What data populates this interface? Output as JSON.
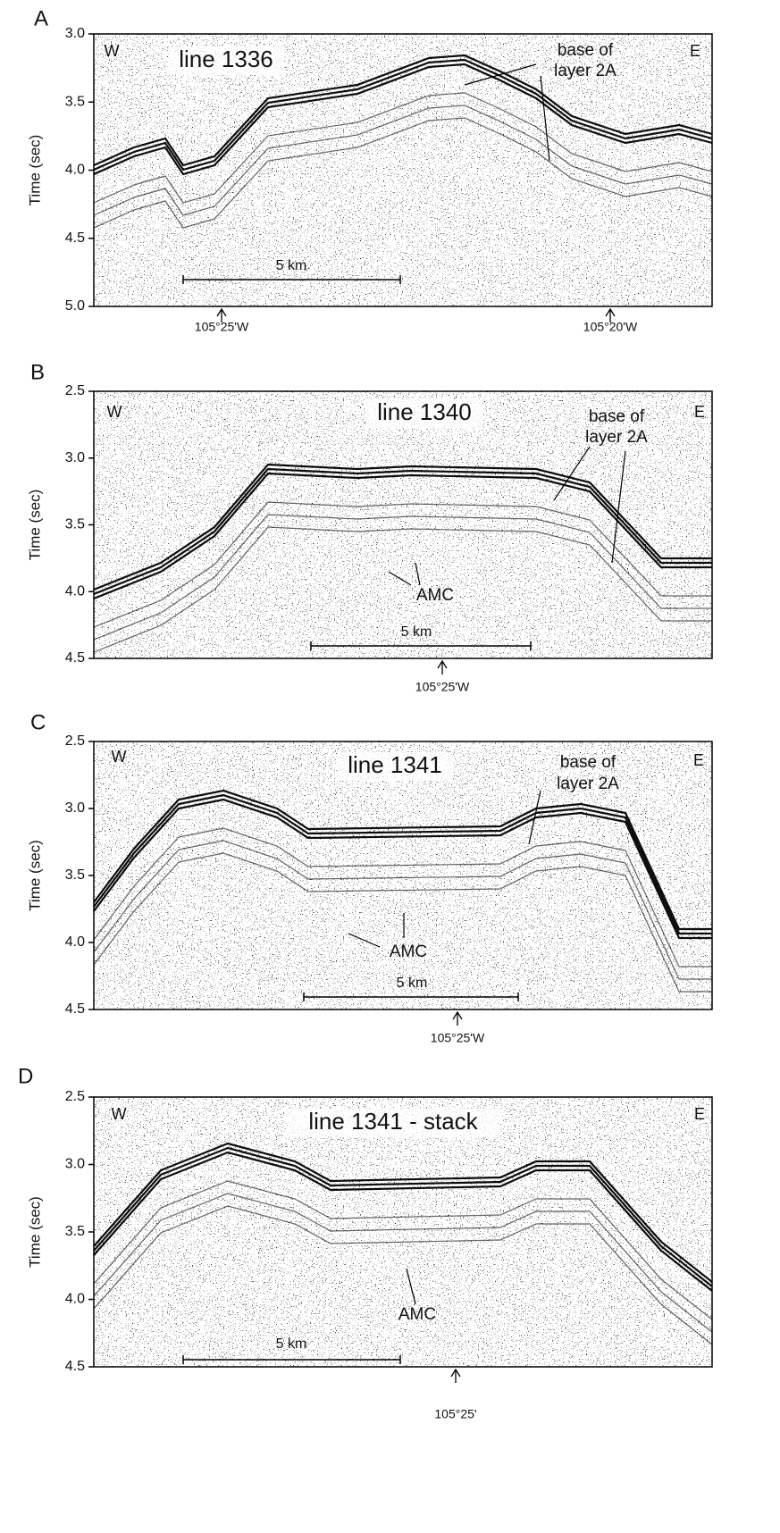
{
  "panels": [
    {
      "letter": "A",
      "line_label": "line 1336",
      "west": "W",
      "east": "E",
      "y_axis_label": "Time (sec)",
      "yticks": [
        "3.0",
        "3.5",
        "4.0",
        "4.5",
        "5.0"
      ],
      "scale_bar": "5 km",
      "longitudes": [
        "105°25'W",
        "105°20'W"
      ],
      "annotations": [
        "base of",
        "layer 2A"
      ]
    },
    {
      "letter": "B",
      "line_label": "line 1340",
      "west": "W",
      "east": "E",
      "y_axis_label": "Time (sec)",
      "yticks": [
        "2.5",
        "3.0",
        "3.5",
        "4.0",
        "4.5"
      ],
      "scale_bar": "5 km",
      "longitudes": [
        "105°25'W"
      ],
      "annotations": [
        "base of",
        "layer 2A",
        "AMC"
      ]
    },
    {
      "letter": "C",
      "line_label": "line 1341",
      "west": "W",
      "east": "E",
      "y_axis_label": "Time (sec)",
      "yticks": [
        "2.5",
        "3.0",
        "3.5",
        "4.0",
        "4.5"
      ],
      "scale_bar": "5 km",
      "longitudes": [
        "105°25'W"
      ],
      "annotations": [
        "base of",
        "layer 2A",
        "AMC"
      ]
    },
    {
      "letter": "D",
      "line_label": "line 1341 - stack",
      "west": "W",
      "east": "E",
      "y_axis_label": "Time (sec)",
      "yticks": [
        "2.5",
        "3.0",
        "3.5",
        "4.0",
        "4.5"
      ],
      "scale_bar": "5 km",
      "longitudes": [
        "105°25'"
      ],
      "annotations": [
        "AMC"
      ]
    }
  ]
}
